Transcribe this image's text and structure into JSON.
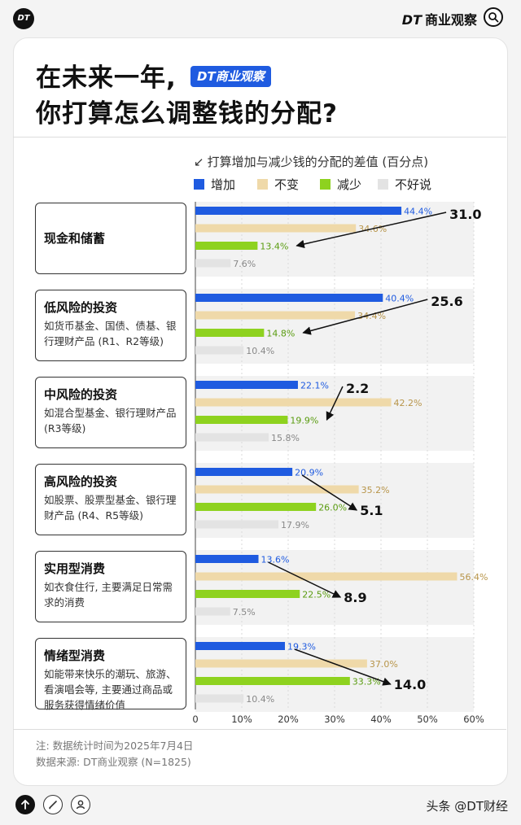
{
  "header": {
    "logo_text": "DT",
    "brand_dt": "DT",
    "brand_name": "商业观察"
  },
  "headline": {
    "line1": "在未来一年,",
    "line2": "你打算怎么调整钱的分配?",
    "badge_dt": "DT",
    "badge_name": "商业观察"
  },
  "colors": {
    "increase": "#1f5be0",
    "unchanged": "#efd9a9",
    "decrease": "#8ed21f",
    "unsure": "#e3e3e3",
    "arrow": "#111111"
  },
  "chart_data": {
    "type": "bar",
    "subtitle": "打算增加与减少钱的分配的差值 (百分点)",
    "subtitle_glyph": "↙",
    "legend": [
      "增加",
      "不变",
      "减少",
      "不好说"
    ],
    "legend_placement": "top",
    "orientation": "horizontal",
    "xlim": [
      0,
      60
    ],
    "x_ticks": [
      "0",
      "10%",
      "20%",
      "30%",
      "40%",
      "50%",
      "60%"
    ],
    "categories": [
      {
        "title": "现金和储蓄",
        "desc": ""
      },
      {
        "title": "低风险的投资",
        "desc": "如货币基金、国债、债基、银行理财产品 (R1、R2等级)"
      },
      {
        "title": "中风险的投资",
        "desc": "如混合型基金、银行理财产品 (R3等级)"
      },
      {
        "title": "高风险的投资",
        "desc": "如股票、股票型基金、银行理财产品 (R4、R5等级)"
      },
      {
        "title": "实用型消费",
        "desc": "如衣食住行, 主要满足日常需求的消费"
      },
      {
        "title": "情绪型消费",
        "desc": "如能带来快乐的潮玩、旅游、看演唱会等, 主要通过商品或服务获得情绪价值"
      }
    ],
    "series": [
      {
        "name": "增加",
        "values": [
          44.4,
          40.4,
          22.1,
          20.9,
          13.6,
          19.3
        ],
        "labels": [
          "44.4%",
          "40.4%",
          "22.1%",
          "20.9%",
          "13.6%",
          "19.3%"
        ]
      },
      {
        "name": "不变",
        "values": [
          34.6,
          34.4,
          42.2,
          35.2,
          56.4,
          37.0
        ],
        "labels": [
          "34.6%",
          "34.4%",
          "42.2%",
          "35.2%",
          "56.4%",
          "37.0%"
        ]
      },
      {
        "name": "减少",
        "values": [
          13.4,
          14.8,
          19.9,
          26.0,
          22.5,
          33.3
        ],
        "labels": [
          "13.4%",
          "14.8%",
          "19.9%",
          "26.0%",
          "22.5%",
          "33.3%"
        ]
      },
      {
        "name": "不好说",
        "values": [
          7.6,
          10.4,
          15.8,
          17.9,
          7.5,
          10.4
        ],
        "labels": [
          "7.6%",
          "10.4%",
          "15.8%",
          "17.9%",
          "7.5%",
          "10.4%"
        ]
      }
    ],
    "differences": [
      31.0,
      25.6,
      2.2,
      -5.1,
      -8.9,
      -14.0
    ],
    "difference_labels": [
      "31.0",
      "25.6",
      "2.2",
      "5.1",
      "8.9",
      "14.0"
    ],
    "grid": true
  },
  "footnotes": {
    "note": "注: 数据统计时间为2025年7月4日",
    "source": "数据来源: DT商业观察 (N=1825)"
  },
  "footer": {
    "brand": "头条 @DT财经"
  }
}
